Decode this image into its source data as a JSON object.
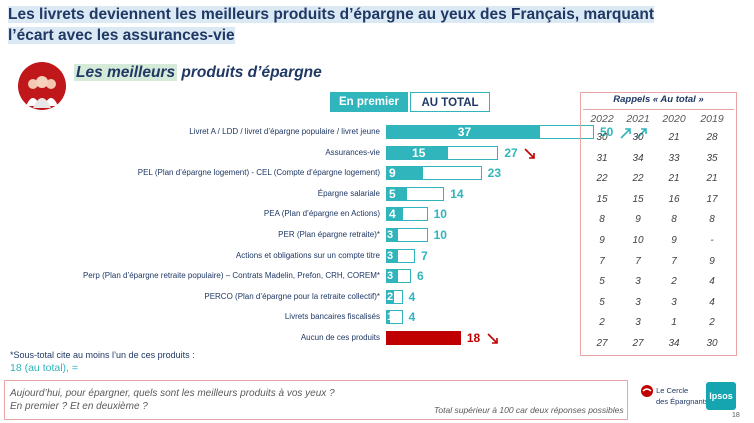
{
  "title": "Les livrets deviennent les meilleurs produits d’épargne au yeux des Français, marquant l’écart avec les assurances-vie",
  "subtitle_highlight": "Les meilleurs",
  "subtitle_rest": " produits d’épargne",
  "tabs": {
    "first": "En premier",
    "total": "AU TOTAL"
  },
  "rappels": {
    "title": "Rappels « Au total »",
    "years": [
      "2022",
      "2021",
      "2020",
      "2019"
    ],
    "rows": [
      [
        "30",
        "30",
        "21",
        "28"
      ],
      [
        "31",
        "34",
        "33",
        "35"
      ],
      [
        "22",
        "22",
        "21",
        "21"
      ],
      [
        "15",
        "15",
        "16",
        "17"
      ],
      [
        "8",
        "9",
        "8",
        "8"
      ],
      [
        "9",
        "10",
        "9",
        "-"
      ],
      [
        "7",
        "7",
        "7",
        "9"
      ],
      [
        "5",
        "3",
        "2",
        "4"
      ],
      [
        "5",
        "3",
        "3",
        "4"
      ],
      [
        "2",
        "3",
        "1",
        "2"
      ],
      [
        "27",
        "27",
        "34",
        "30"
      ]
    ]
  },
  "chart_data": {
    "type": "bar",
    "categories": [
      "Livret A / LDD / livret d’épargne populaire / livret jeune",
      "Assurances-vie",
      "PEL (Plan d’épargne logement) - CEL (Compte d’épargne logement)",
      "Épargne salariale",
      "PEA (Plan d’épargne en Actions)",
      "PER (Plan épargne retraite)*",
      "Actions et obligations sur un compte titre",
      "Perp (Plan d’épargne retraite populaire) – Contrats Madelin, Prefon, CRH, COREM*",
      "PERCO (Plan d’épargne pour la retraite collectif)*",
      "Livrets bancaires fiscalisés",
      "Aucun de ces produits"
    ],
    "series": [
      {
        "name": "En premier",
        "values": [
          37,
          15,
          9,
          5,
          4,
          3,
          3,
          3,
          2,
          1,
          18
        ]
      },
      {
        "name": "AU TOTAL",
        "values": [
          50,
          27,
          23,
          14,
          10,
          10,
          7,
          6,
          4,
          4,
          18
        ]
      }
    ],
    "first_labels": [
      "37",
      "15",
      "9",
      "5",
      "4",
      "3",
      "3",
      "3",
      "2",
      "1",
      ""
    ],
    "total_labels": [
      "50",
      "27",
      "23",
      "14",
      "10",
      "10",
      "7",
      "6",
      "4",
      "4",
      "18"
    ],
    "trends": [
      "up",
      "down",
      "",
      "",
      "",
      "",
      "",
      "",
      "",
      "",
      "down"
    ],
    "xlim": [
      0,
      60
    ],
    "colors": {
      "first": "#2fb5bb",
      "total_outline": "#2fb5bb",
      "none": "#c00000",
      "up": "#2fb5bb",
      "down": "#c00000"
    }
  },
  "note": "*Sous-total cite au moins l’un de ces produits :",
  "note_value": "18 (au total), =",
  "question_line1": "Aujourd’hui, pour épargner, quels sont les meilleurs produits à vos yeux ?",
  "question_line2": "En premier ? Et en deuxième ?",
  "question_note": "Total supérieur à 100 car deux réponses possibles",
  "cercle_logo_line1": "Le Cercle",
  "cercle_logo_line2": "des Épargnants",
  "ipsos_logo": "Ipsos",
  "page_number": "18"
}
